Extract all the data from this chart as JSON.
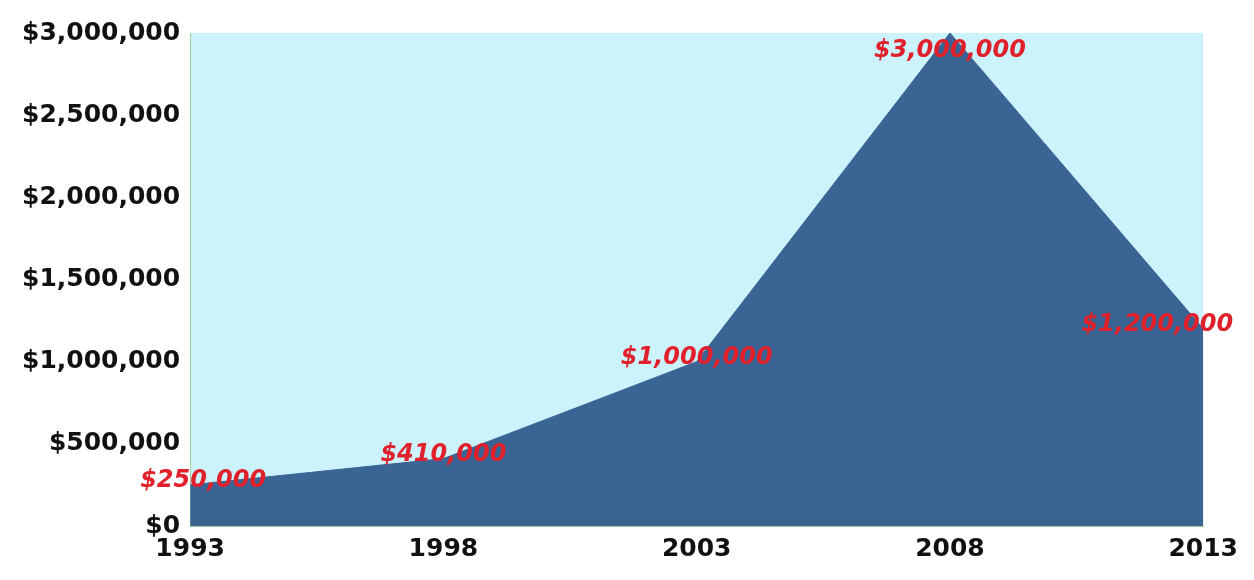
{
  "chart_data": {
    "type": "area",
    "categories": [
      "1993",
      "1998",
      "2003",
      "2008",
      "2013"
    ],
    "series": [
      {
        "color": "#3a6494",
        "values": [
          250000,
          410000,
          1000000,
          3000000,
          1200000
        ],
        "value_labels": [
          "$250,000",
          "$410,000",
          "$1,000,000",
          "$3,000,000",
          "$1,200,000"
        ]
      }
    ],
    "ylim": [
      0,
      3000000
    ],
    "yticks": [
      {
        "value": 0,
        "label": "$0"
      },
      {
        "value": 500000,
        "label": "$500,000"
      },
      {
        "value": 1000000,
        "label": "$1,000,000"
      },
      {
        "value": 1500000,
        "label": "$1,500,000"
      },
      {
        "value": 2000000,
        "label": "$2,000,000"
      },
      {
        "value": 2500000,
        "label": "$2,500,000"
      },
      {
        "value": 3000000,
        "label": "$3,000,000"
      }
    ],
    "grid": false,
    "legend": false
  }
}
